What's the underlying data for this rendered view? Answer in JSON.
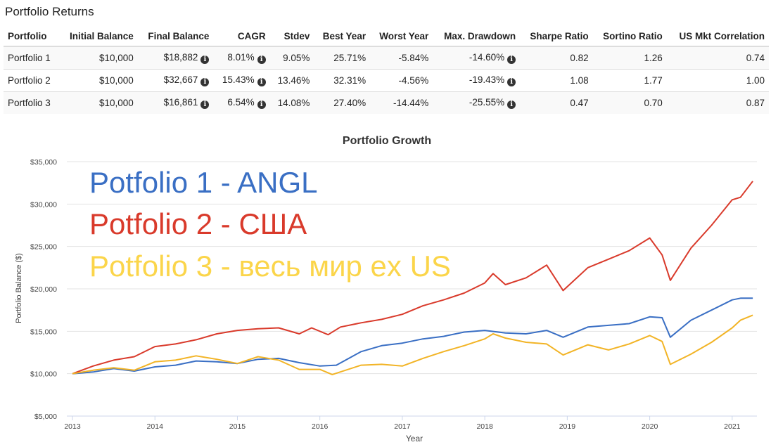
{
  "table": {
    "title": "Portfolio Returns",
    "info_icon": "info-circle-icon",
    "columns": [
      "Portfolio",
      "Initial Balance",
      "Final Balance",
      "CAGR",
      "Stdev",
      "Best Year",
      "Worst Year",
      "Max. Drawdown",
      "Sharpe Ratio",
      "Sortino Ratio",
      "US Mkt Correlation"
    ],
    "rows": [
      {
        "name": "Portfolio 1",
        "initial": "$10,000",
        "final": "$18,882",
        "cagr": "8.01%",
        "stdev": "9.05%",
        "best": "25.71%",
        "worst": "-5.84%",
        "drawdown": "-14.60%",
        "sharpe": "0.82",
        "sortino": "1.26",
        "corr": "0.74"
      },
      {
        "name": "Portfolio 2",
        "initial": "$10,000",
        "final": "$32,667",
        "cagr": "15.43%",
        "stdev": "13.46%",
        "best": "32.31%",
        "worst": "-4.56%",
        "drawdown": "-19.43%",
        "sharpe": "1.08",
        "sortino": "1.77",
        "corr": "1.00"
      },
      {
        "name": "Portfolio 3",
        "initial": "$10,000",
        "final": "$16,861",
        "cagr": "6.54%",
        "stdev": "14.08%",
        "best": "27.40%",
        "worst": "-14.44%",
        "drawdown": "-25.55%",
        "sharpe": "0.47",
        "sortino": "0.70",
        "corr": "0.87"
      }
    ]
  },
  "chart_data": {
    "type": "line",
    "title": "Portfolio Growth",
    "xlabel": "Year",
    "ylabel": "Portfolio Balance ($)",
    "xlim": [
      2013,
      2021.3
    ],
    "ylim": [
      5000,
      35000
    ],
    "yticks": [
      5000,
      10000,
      15000,
      20000,
      25000,
      30000,
      35000
    ],
    "ytick_labels": [
      "$5,000",
      "$10,000",
      "$15,000",
      "$20,000",
      "$25,000",
      "$30,000",
      "$35,000"
    ],
    "xticks": [
      2013,
      2014,
      2015,
      2016,
      2017,
      2018,
      2019,
      2020,
      2021
    ],
    "xtick_labels": [
      "2013",
      "2014",
      "2015",
      "2016",
      "2017",
      "2018",
      "2019",
      "2020",
      "2021"
    ],
    "grid": "horizontal",
    "legend": [
      {
        "text": "Potfolio 1 - ANGL",
        "color": "#3a6fc4"
      },
      {
        "text": "Potfolio 2 - США",
        "color": "#d93a2b"
      },
      {
        "text": "Potfolio 3 - весь мир ex US",
        "color": "#fbd54a"
      }
    ],
    "series": [
      {
        "color": "#3a6fc4",
        "x": [
          2013.0,
          2013.25,
          2013.5,
          2013.75,
          2014.0,
          2014.25,
          2014.5,
          2014.75,
          2015.0,
          2015.25,
          2015.5,
          2015.75,
          2016.0,
          2016.2,
          2016.5,
          2016.75,
          2017.0,
          2017.25,
          2017.5,
          2017.75,
          2018.0,
          2018.25,
          2018.5,
          2018.75,
          2018.95,
          2019.25,
          2019.5,
          2019.75,
          2020.0,
          2020.15,
          2020.25,
          2020.5,
          2020.75,
          2021.0,
          2021.1,
          2021.25
        ],
        "y": [
          10000,
          10200,
          10600,
          10300,
          10800,
          11000,
          11500,
          11400,
          11200,
          11700,
          11800,
          11300,
          10900,
          11000,
          12600,
          13300,
          13600,
          14100,
          14400,
          14900,
          15100,
          14800,
          14700,
          15100,
          14300,
          15500,
          15700,
          15900,
          16700,
          16600,
          14300,
          16300,
          17500,
          18700,
          18900,
          18900
        ]
      },
      {
        "color": "#d93a2b",
        "x": [
          2013.0,
          2013.25,
          2013.5,
          2013.75,
          2014.0,
          2014.25,
          2014.5,
          2014.75,
          2015.0,
          2015.25,
          2015.5,
          2015.75,
          2015.9,
          2016.1,
          2016.25,
          2016.5,
          2016.75,
          2017.0,
          2017.25,
          2017.5,
          2017.75,
          2018.0,
          2018.1,
          2018.25,
          2018.5,
          2018.75,
          2018.95,
          2019.25,
          2019.5,
          2019.75,
          2020.0,
          2020.15,
          2020.25,
          2020.5,
          2020.75,
          2021.0,
          2021.1,
          2021.25
        ],
        "y": [
          10000,
          10900,
          11600,
          12000,
          13200,
          13500,
          14000,
          14700,
          15100,
          15300,
          15400,
          14700,
          15400,
          14600,
          15500,
          16000,
          16400,
          17000,
          18000,
          18700,
          19500,
          20700,
          21800,
          20500,
          21300,
          22800,
          19800,
          22500,
          23500,
          24500,
          26000,
          24000,
          21000,
          24800,
          27500,
          30500,
          30800,
          32700
        ]
      },
      {
        "color": "#f2b426",
        "x": [
          2013.0,
          2013.25,
          2013.5,
          2013.75,
          2014.0,
          2014.25,
          2014.5,
          2014.75,
          2015.0,
          2015.25,
          2015.5,
          2015.75,
          2016.0,
          2016.15,
          2016.5,
          2016.75,
          2017.0,
          2017.25,
          2017.5,
          2017.75,
          2018.0,
          2018.1,
          2018.25,
          2018.5,
          2018.75,
          2018.95,
          2019.25,
          2019.5,
          2019.75,
          2020.0,
          2020.15,
          2020.25,
          2020.5,
          2020.75,
          2021.0,
          2021.1,
          2021.25
        ],
        "y": [
          10000,
          10400,
          10700,
          10400,
          11400,
          11600,
          12100,
          11700,
          11200,
          12000,
          11600,
          10500,
          10500,
          9900,
          11000,
          11100,
          10900,
          11800,
          12600,
          13300,
          14100,
          14700,
          14200,
          13700,
          13500,
          12200,
          13400,
          12800,
          13500,
          14500,
          13800,
          11100,
          12300,
          13700,
          15400,
          16300,
          16900
        ]
      }
    ]
  }
}
